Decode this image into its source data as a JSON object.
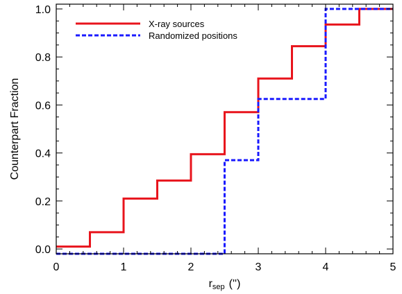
{
  "chart_data": {
    "type": "line",
    "step": true,
    "xlabel": "r",
    "xlabel_sub": "sep",
    "xlabel_unit": "('')",
    "ylabel": "Counterpart Fraction",
    "xlim": [
      0,
      5
    ],
    "ylim": [
      -0.02,
      1.02
    ],
    "xticks": [
      0,
      1,
      2,
      3,
      4,
      5
    ],
    "yticks": [
      0.0,
      0.2,
      0.4,
      0.6,
      0.8,
      1.0
    ],
    "xtick_labels": [
      "0",
      "1",
      "2",
      "3",
      "4",
      "5"
    ],
    "ytick_labels": [
      "0.0",
      "0.2",
      "0.4",
      "0.6",
      "0.8",
      "1.0"
    ],
    "legend_position": "top-left",
    "grid": false,
    "series": [
      {
        "name": "X-ray sources",
        "color": "#e8141c",
        "style": "solid",
        "x": [
          0,
          0.5,
          1.0,
          1.5,
          2.0,
          2.5,
          3.0,
          3.5,
          4.0,
          4.5,
          5.0
        ],
        "y": [
          0.01,
          0.07,
          0.21,
          0.285,
          0.395,
          0.57,
          0.71,
          0.845,
          0.935,
          1.0,
          1.0
        ]
      },
      {
        "name": "Randomized positions",
        "color": "#1a1aff",
        "style": "dashed",
        "x": [
          0,
          0.5,
          1.0,
          1.5,
          2.0,
          2.5,
          3.0,
          3.5,
          4.0,
          4.5,
          5.0
        ],
        "y": [
          -0.02,
          -0.02,
          -0.02,
          -0.02,
          -0.02,
          0.37,
          0.625,
          0.625,
          1.0,
          1.0,
          1.0
        ]
      }
    ]
  }
}
